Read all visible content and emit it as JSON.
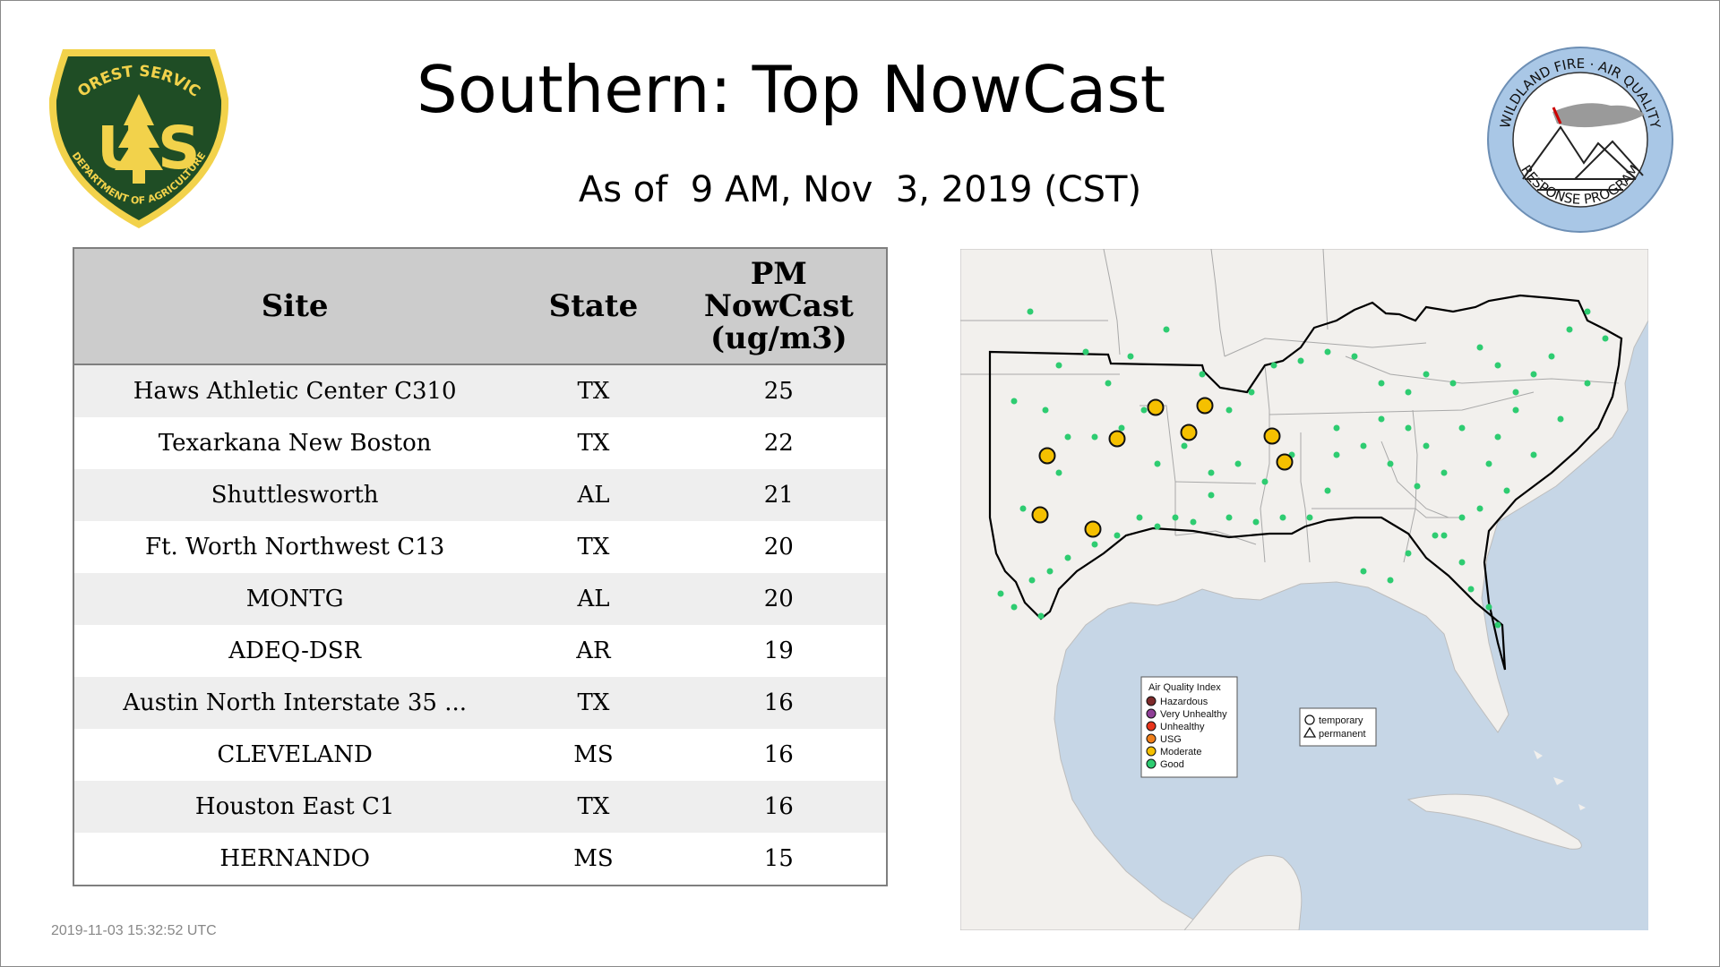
{
  "header": {
    "title": "Southern: Top NowCast",
    "subtitle": "As of  9 AM, Nov  3, 2019 (CST)"
  },
  "logos": {
    "forest_service": {
      "top_text": "FOREST SERVICE",
      "letters": "U S",
      "bottom_text": "DEPARTMENT OF AGRICULTURE"
    },
    "wildland_fire": {
      "top_text": "WILDLAND FIRE · AIR QUALITY",
      "bottom_text": "RESPONSE PROGRAM"
    }
  },
  "table": {
    "headers": {
      "site": "Site",
      "state": "State",
      "pm_line1": "PM",
      "pm_line2": "NowCast",
      "pm_line3": "(ug/m3)"
    },
    "rows": [
      {
        "site": "Haws Athletic Center C310",
        "state": "TX",
        "value": "25"
      },
      {
        "site": "Texarkana New Boston",
        "state": "TX",
        "value": "22"
      },
      {
        "site": "Shuttlesworth",
        "state": "AL",
        "value": "21"
      },
      {
        "site": "Ft. Worth Northwest C13",
        "state": "TX",
        "value": "20"
      },
      {
        "site": "MONTG",
        "state": "AL",
        "value": "20"
      },
      {
        "site": "ADEQ-DSR",
        "state": "AR",
        "value": "19"
      },
      {
        "site": "Austin North Interstate 35 ...",
        "state": "TX",
        "value": "16"
      },
      {
        "site": "CLEVELAND",
        "state": "MS",
        "value": "16"
      },
      {
        "site": "Houston East C1",
        "state": "TX",
        "value": "16"
      },
      {
        "site": "HERNANDO",
        "state": "MS",
        "value": "15"
      }
    ]
  },
  "map": {
    "legend": {
      "title": "Air Quality Index",
      "items": [
        {
          "label": "Hazardous",
          "color": "#7e2a2a"
        },
        {
          "label": "Very Unhealthy",
          "color": "#8f3f97"
        },
        {
          "label": "Unhealthy",
          "color": "#e8341c"
        },
        {
          "label": "USG",
          "color": "#f07f1a"
        },
        {
          "label": "Moderate",
          "color": "#f5c000"
        },
        {
          "label": "Good",
          "color": "#2ecc71"
        }
      ]
    },
    "shape_legend": {
      "temporary": "temporary",
      "permanent": "permanent"
    },
    "colors": {
      "ocean": "#c6d6e6",
      "land": "#f2f0ed",
      "good": "#2ecc71",
      "moderate": "#f5c000"
    }
  },
  "footer": {
    "timestamp": "2019-11-03 15:32:52 UTC"
  }
}
